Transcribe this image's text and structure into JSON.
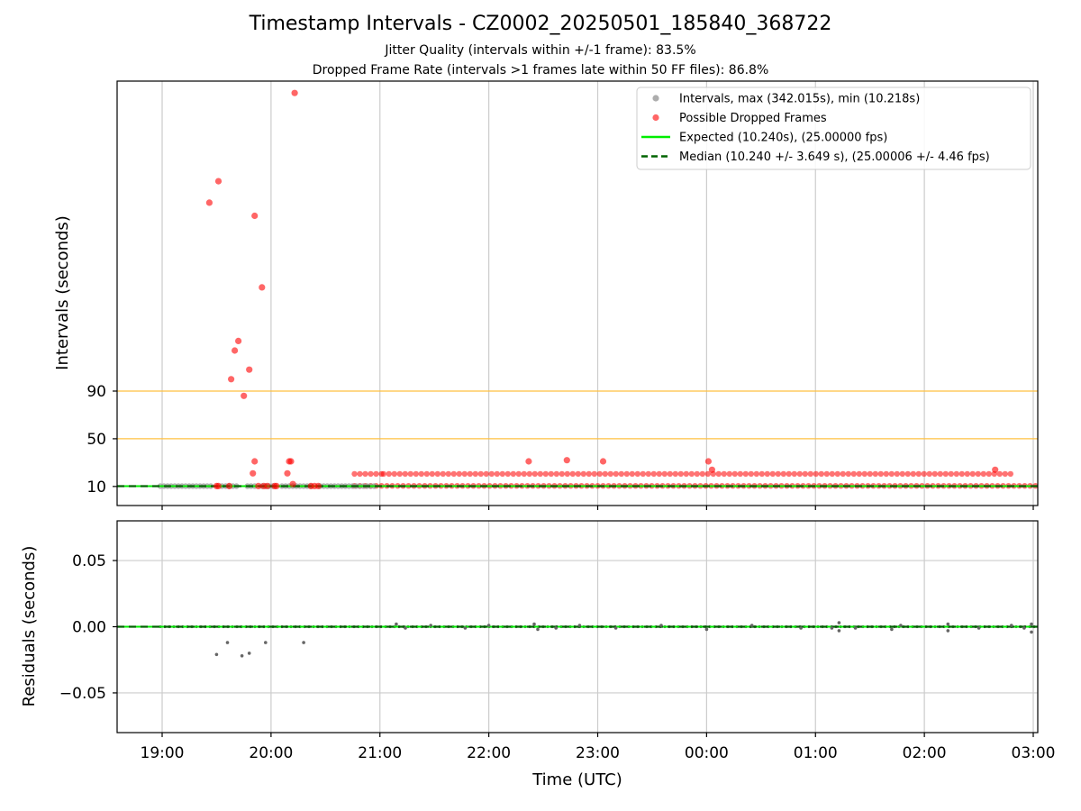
{
  "title": "Timestamp Intervals - CZ0002_20250501_185840_368722",
  "subtitle_1": "Jitter Quality (intervals within +/-1 frame): 83.5%",
  "subtitle_2": "Dropped Frame Rate (intervals >1 frames late within 50 FF files): 86.8%",
  "colors": {
    "intervals": "#999999",
    "dropped": "#ff0000",
    "expected": "#00ee00",
    "median": "#006400",
    "threshold_lines": "#ffc040",
    "grid": "#cccccc",
    "residual_points": "#666666"
  },
  "chart_data": [
    {
      "type": "scatter",
      "panel": "top",
      "xlabel": "",
      "ylabel": "Intervals (seconds)",
      "y_ticks": [
        10,
        50,
        90
      ],
      "y_tick_labels": [
        "10",
        "50",
        "90"
      ],
      "ylim": [
        -6,
        350
      ],
      "horizontal_reference_lines": [
        50,
        90
      ],
      "grid": true,
      "legend_position": "top-right",
      "legend": [
        {
          "label": "Intervals, max (342.015s), min (10.218s)",
          "style": "gray-dot"
        },
        {
          "label": "Possible Dropped Frames",
          "style": "red-dot"
        },
        {
          "label": "Expected (10.240s), (25.00000 fps)",
          "style": "green-solid"
        },
        {
          "label": "Median (10.240 +/- 3.649 s), (25.00006 +/- 4.46 fps)",
          "style": "darkgreen-dashed"
        }
      ],
      "expected_value": 10.24,
      "median_value": 10.24,
      "normal_interval_runs": [
        {
          "start": "18:59",
          "end": "19:28"
        },
        {
          "start": "19:33",
          "end": "19:42"
        },
        {
          "start": "19:47",
          "end": "19:51"
        },
        {
          "start": "19:55",
          "end": "20:01"
        },
        {
          "start": "20:06",
          "end": "20:22"
        },
        {
          "start": "20:27",
          "end": "20:58"
        }
      ],
      "dropped_frame_points": [
        {
          "t": "20:13",
          "v": 340
        },
        {
          "t": "19:31",
          "v": 266
        },
        {
          "t": "19:26",
          "v": 248
        },
        {
          "t": "19:51",
          "v": 237
        },
        {
          "t": "19:55",
          "v": 177
        },
        {
          "t": "19:42",
          "v": 132
        },
        {
          "t": "19:40",
          "v": 124
        },
        {
          "t": "19:48",
          "v": 108
        },
        {
          "t": "19:38",
          "v": 100
        },
        {
          "t": "19:45",
          "v": 86
        },
        {
          "t": "19:51",
          "v": 31
        },
        {
          "t": "19:50",
          "v": 21
        },
        {
          "t": "20:10",
          "v": 31
        },
        {
          "t": "20:11",
          "v": 31
        },
        {
          "t": "20:09",
          "v": 21
        },
        {
          "t": "20:12",
          "v": 12
        },
        {
          "t": "19:30",
          "v": 10.3
        },
        {
          "t": "19:31",
          "v": 10.3
        },
        {
          "t": "19:37",
          "v": 10.3
        },
        {
          "t": "19:53",
          "v": 10.3
        },
        {
          "t": "19:56",
          "v": 10.3
        },
        {
          "t": "19:58",
          "v": 10.3
        },
        {
          "t": "20:02",
          "v": 10.3
        },
        {
          "t": "20:03",
          "v": 10.3
        },
        {
          "t": "20:22",
          "v": 10.3
        },
        {
          "t": "20:24",
          "v": 10.3
        },
        {
          "t": "20:26",
          "v": 10.3
        },
        {
          "t": "22:22",
          "v": 31
        },
        {
          "t": "22:43",
          "v": 32
        },
        {
          "t": "23:03",
          "v": 31
        },
        {
          "t": "00:01",
          "v": 31
        },
        {
          "t": "00:03",
          "v": 24
        },
        {
          "t": "02:39",
          "v": 24
        }
      ],
      "dropped_frame_bands": [
        {
          "start": "20:46",
          "end": "21:02",
          "v": 20.5
        },
        {
          "start": "21:02",
          "end": "02:49",
          "v": 20.5
        },
        {
          "start": "20:46",
          "end": "03:02",
          "v": 10.5
        }
      ],
      "x_ticks": [
        "19:00",
        "20:00",
        "21:00",
        "22:00",
        "23:00",
        "00:00",
        "01:00",
        "02:00",
        "03:00"
      ]
    },
    {
      "type": "scatter",
      "panel": "bottom",
      "xlabel": "Time (UTC)",
      "ylabel": "Residuals (seconds)",
      "y_ticks": [
        0.05,
        0.0,
        -0.05
      ],
      "y_tick_labels": [
        "0.05",
        "0.00",
        "−0.05"
      ],
      "ylim": [
        -0.08,
        0.08
      ],
      "grid": true,
      "x_ticks": [
        "19:00",
        "20:00",
        "21:00",
        "22:00",
        "23:00",
        "00:00",
        "01:00",
        "02:00",
        "03:00"
      ],
      "residual_points": [
        {
          "t": "19:30",
          "v": -0.021
        },
        {
          "t": "19:36",
          "v": -0.012
        },
        {
          "t": "19:44",
          "v": -0.022
        },
        {
          "t": "19:48",
          "v": -0.02
        },
        {
          "t": "19:57",
          "v": -0.012
        },
        {
          "t": "20:18",
          "v": -0.012
        },
        {
          "t": "21:09",
          "v": 0.002
        },
        {
          "t": "21:14",
          "v": -0.001
        },
        {
          "t": "21:28",
          "v": 0.001
        },
        {
          "t": "21:47",
          "v": -0.001
        },
        {
          "t": "22:00",
          "v": 0.001
        },
        {
          "t": "22:25",
          "v": 0.002
        },
        {
          "t": "22:27",
          "v": -0.002
        },
        {
          "t": "22:37",
          "v": -0.001
        },
        {
          "t": "22:50",
          "v": 0.001
        },
        {
          "t": "23:10",
          "v": -0.001
        },
        {
          "t": "23:35",
          "v": 0.001
        },
        {
          "t": "00:00",
          "v": -0.002
        },
        {
          "t": "00:25",
          "v": 0.001
        },
        {
          "t": "00:52",
          "v": -0.001
        },
        {
          "t": "01:09",
          "v": -0.001
        },
        {
          "t": "01:13",
          "v": 0.003
        },
        {
          "t": "01:13",
          "v": -0.003
        },
        {
          "t": "01:22",
          "v": -0.001
        },
        {
          "t": "01:42",
          "v": -0.002
        },
        {
          "t": "01:47",
          "v": 0.001
        },
        {
          "t": "02:13",
          "v": 0.002
        },
        {
          "t": "02:13",
          "v": -0.003
        },
        {
          "t": "02:30",
          "v": -0.001
        },
        {
          "t": "02:48",
          "v": 0.001
        },
        {
          "t": "02:55",
          "v": -0.001
        },
        {
          "t": "02:59",
          "v": 0.002
        },
        {
          "t": "02:59",
          "v": -0.004
        }
      ]
    }
  ]
}
